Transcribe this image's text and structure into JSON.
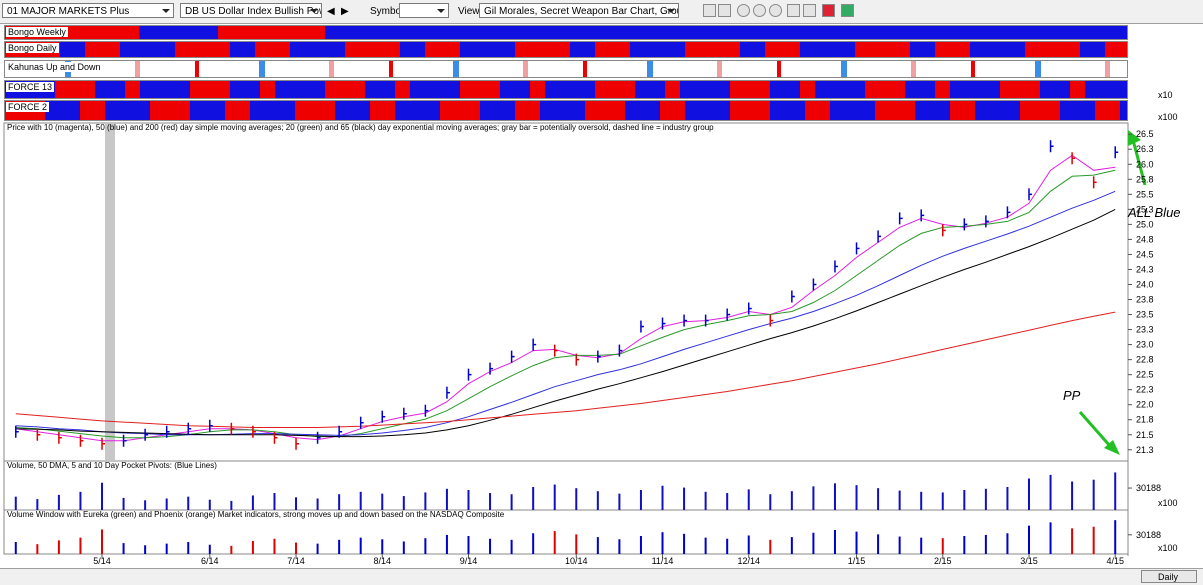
{
  "toolbar": {
    "market_list": "01 MAJOR MARKETS Plus",
    "symbol_name": "DB US Dollar Index Bullish Powershare",
    "symbol_label": "Symbol:",
    "view_label": "View:",
    "view_name": "Gil Morales, Secret Weapon Bar Chart, Group Index"
  },
  "panels": {
    "bongo_weekly": "Bongo Weekly",
    "bongo_daily": "Bongo Daily",
    "kahunas": "Kahunas Up and Down",
    "force13": "FORCE 13",
    "force2": "FORCE 2",
    "force13_scale": "x10",
    "force2_scale": "x100"
  },
  "chart_data": {
    "type": "bar-line",
    "title": "Price with 10 (magenta), 50 (blue) and 200 (red) day simple moving averages; 20 (green) and 65 (black) day exponential moving averages; gray bar = potentially oversold, dashed line = industry group",
    "categories": [
      null,
      null,
      null,
      null,
      "5/14",
      null,
      null,
      null,
      null,
      "6/14",
      null,
      null,
      null,
      "7/14",
      null,
      null,
      null,
      "8/14",
      null,
      null,
      null,
      "9/14",
      null,
      null,
      null,
      null,
      "10/14",
      null,
      null,
      null,
      "11/14",
      null,
      null,
      null,
      "12/14",
      null,
      null,
      null,
      null,
      "1/15",
      null,
      null,
      null,
      "2/15",
      null,
      null,
      null,
      "3/15",
      null,
      null,
      null,
      "4/15"
    ],
    "series": [
      {
        "name": "Price",
        "color": "#0000cc",
        "values": [
          21.55,
          21.5,
          21.45,
          21.4,
          21.35,
          21.4,
          21.5,
          21.55,
          21.6,
          21.65,
          21.6,
          21.55,
          21.45,
          21.35,
          21.45,
          21.55,
          21.7,
          21.8,
          21.85,
          21.9,
          22.2,
          22.5,
          22.6,
          22.8,
          23.0,
          22.9,
          22.75,
          22.8,
          22.9,
          23.3,
          23.35,
          23.4,
          23.4,
          23.5,
          23.6,
          23.4,
          23.8,
          24.0,
          24.3,
          24.6,
          24.8,
          25.1,
          25.15,
          24.9,
          25.0,
          25.05,
          25.2,
          25.5,
          26.3,
          26.1,
          25.7,
          26.2
        ]
      },
      {
        "name": "10 day SMA",
        "color": "#e020e0",
        "values": [
          21.6,
          21.55,
          21.5,
          21.45,
          21.4,
          21.4,
          21.45,
          21.5,
          21.55,
          21.6,
          21.6,
          21.58,
          21.52,
          21.45,
          21.42,
          21.48,
          21.6,
          21.72,
          21.8,
          21.86,
          22.05,
          22.35,
          22.55,
          22.7,
          22.9,
          22.92,
          22.82,
          22.78,
          22.85,
          23.1,
          23.3,
          23.38,
          23.4,
          23.45,
          23.55,
          23.5,
          23.62,
          23.9,
          24.15,
          24.45,
          24.7,
          24.95,
          25.1,
          25.0,
          24.95,
          25.02,
          25.12,
          25.35,
          25.9,
          26.15,
          25.9,
          25.95
        ]
      },
      {
        "name": "20 day EMA",
        "color": "#2a9a2a",
        "values": [
          21.62,
          21.6,
          21.56,
          21.52,
          21.48,
          21.45,
          21.45,
          21.47,
          21.5,
          21.55,
          21.58,
          21.58,
          21.55,
          21.5,
          21.47,
          21.47,
          21.52,
          21.6,
          21.68,
          21.76,
          21.9,
          22.1,
          22.3,
          22.48,
          22.65,
          22.78,
          22.82,
          22.82,
          22.84,
          22.98,
          23.12,
          23.25,
          23.33,
          23.4,
          23.48,
          23.5,
          23.55,
          23.7,
          23.9,
          24.15,
          24.4,
          24.65,
          24.85,
          24.95,
          24.97,
          25.0,
          25.05,
          25.2,
          25.55,
          25.8,
          25.82,
          25.9
        ]
      },
      {
        "name": "50 day SMA",
        "color": "#3030e0",
        "values": [
          21.65,
          21.63,
          21.6,
          21.58,
          21.55,
          21.53,
          21.52,
          21.5,
          21.5,
          21.5,
          21.51,
          21.52,
          21.52,
          21.51,
          21.5,
          21.49,
          21.5,
          21.53,
          21.57,
          21.62,
          21.7,
          21.8,
          21.92,
          22.04,
          22.17,
          22.3,
          22.4,
          22.5,
          22.58,
          22.68,
          22.8,
          22.92,
          23.03,
          23.14,
          23.25,
          23.35,
          23.44,
          23.55,
          23.68,
          23.82,
          23.98,
          24.15,
          24.32,
          24.47,
          24.6,
          24.72,
          24.84,
          24.97,
          25.12,
          25.27,
          25.4,
          25.55
        ]
      },
      {
        "name": "65 day EMA",
        "color": "#000000",
        "values": [
          21.6,
          21.59,
          21.58,
          21.56,
          21.55,
          21.54,
          21.53,
          21.52,
          21.51,
          21.5,
          21.5,
          21.5,
          21.5,
          21.49,
          21.48,
          21.47,
          21.47,
          21.48,
          21.5,
          21.53,
          21.58,
          21.65,
          21.74,
          21.84,
          21.95,
          22.06,
          22.16,
          22.26,
          22.35,
          22.45,
          22.55,
          22.66,
          22.77,
          22.88,
          22.99,
          23.1,
          23.2,
          23.31,
          23.43,
          23.56,
          23.7,
          23.84,
          23.98,
          24.12,
          24.25,
          24.37,
          24.5,
          24.63,
          24.77,
          24.92,
          25.07,
          25.25
        ]
      },
      {
        "name": "200 day SMA",
        "color": "#e02020",
        "values": [
          21.85,
          21.82,
          21.79,
          21.76,
          21.73,
          21.71,
          21.69,
          21.67,
          21.65,
          21.64,
          21.63,
          21.62,
          21.62,
          21.62,
          21.62,
          21.63,
          21.64,
          21.66,
          21.68,
          21.7,
          21.72,
          21.75,
          21.78,
          21.81,
          21.84,
          21.87,
          21.9,
          21.94,
          21.98,
          22.02,
          22.07,
          22.12,
          22.17,
          22.22,
          22.28,
          22.34,
          22.4,
          22.47,
          22.54,
          22.61,
          22.68,
          22.76,
          22.84,
          22.92,
          23.0,
          23.08,
          23.16,
          23.24,
          23.32,
          23.4,
          23.47,
          23.54
        ]
      }
    ],
    "ylim": [
      21.08,
      26.67
    ],
    "yticks": [
      26.5,
      {
        "value": 26.25,
        "label": "26.3"
      },
      {
        "value": 26,
        "label": "26.0"
      },
      {
        "value": 25.75,
        "label": "25.8"
      },
      25.5,
      {
        "value": 25.25,
        "label": "25.3"
      },
      {
        "value": 25,
        "label": "25.0"
      },
      {
        "value": 24.75,
        "label": "24.8"
      },
      24.5,
      {
        "value": 24.25,
        "label": "24.3"
      },
      {
        "value": 24,
        "label": "24.0"
      },
      {
        "value": 23.75,
        "label": "23.8"
      },
      23.5,
      {
        "value": 23.25,
        "label": "23.3"
      },
      {
        "value": 23,
        "label": "23.0"
      },
      {
        "value": 22.75,
        "label": "22.8"
      },
      22.5,
      {
        "value": 22.25,
        "label": "22.3"
      },
      {
        "value": 22,
        "label": "22.0"
      },
      {
        "value": 21.75,
        "label": "21.8"
      },
      21.5,
      {
        "value": 21.25,
        "label": "21.3"
      }
    ],
    "up_color": "#0000cc",
    "down_color": "#e00000",
    "annotations": [
      "ALL Blue",
      "PP"
    ]
  },
  "volume": {
    "title": "Volume, 50 DMA, 5 and 10 Day Pocket Pivots: (Blue Lines)",
    "color": "#1010c0",
    "values": [
      22000,
      18000,
      25000,
      30000,
      45000,
      20000,
      16000,
      19000,
      22000,
      17000,
      15000,
      24000,
      28000,
      21000,
      19000,
      26000,
      30000,
      27000,
      23000,
      29000,
      35000,
      33000,
      28000,
      26000,
      38000,
      42000,
      36000,
      31000,
      27000,
      33000,
      40000,
      37000,
      30000,
      28000,
      34000,
      26000,
      31000,
      39000,
      44000,
      41000,
      36000,
      32000,
      30000,
      29000,
      33000,
      35000,
      38000,
      52000,
      58000,
      47000,
      50000,
      62000
    ],
    "ylim": [
      0,
      66000
    ],
    "yticks": [
      30188
    ],
    "scale": "x100"
  },
  "market_volume": {
    "title": "Volume Window with Eureka (green) and Phoenix (orange) Market indicators, strong moves up and down based on the NASDAQ Composite",
    "yticks": [
      30188
    ],
    "scale": "x100"
  },
  "status": {
    "timeframe": "Daily"
  }
}
